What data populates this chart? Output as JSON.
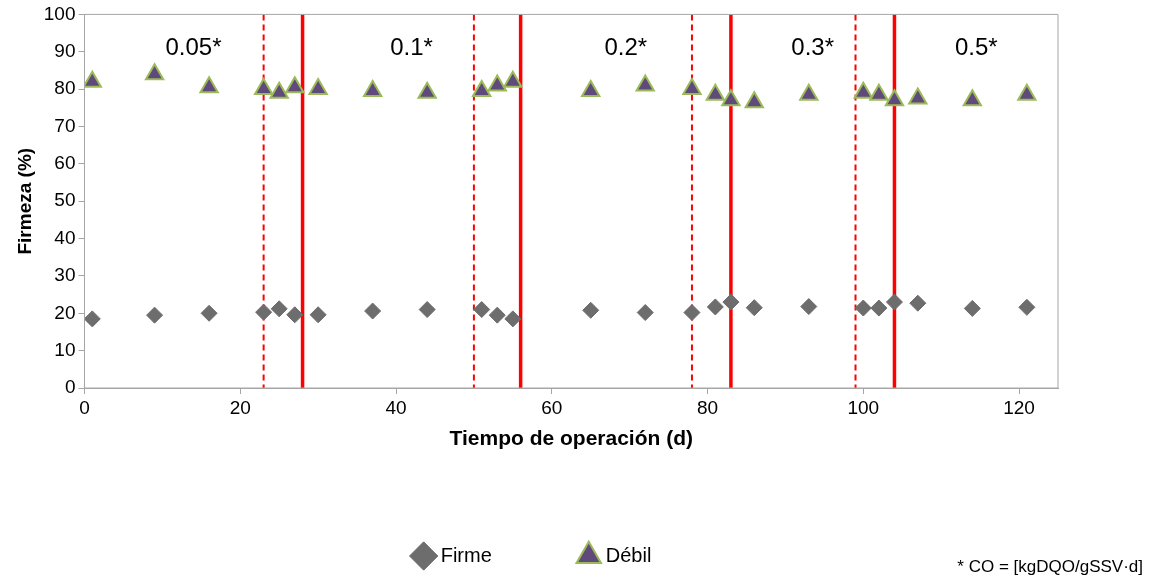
{
  "chart_data": {
    "type": "scatter",
    "xlabel": "Tiempo de operación (d)",
    "ylabel": "Firmeza (%)",
    "x": [
      1,
      9,
      16,
      23,
      25,
      27,
      30,
      37,
      44,
      51,
      53,
      55,
      65,
      72,
      78,
      81,
      83,
      86,
      93,
      100,
      102,
      104,
      107,
      114,
      121
    ],
    "series": [
      {
        "name": "Firme",
        "color": "#6d6d6d",
        "marker": "diamond",
        "values": [
          18.5,
          19.5,
          20,
          20.3,
          21.2,
          19.6,
          19.6,
          20.6,
          21,
          21,
          19.5,
          18.5,
          20.8,
          20.2,
          20.2,
          21.7,
          23,
          21.5,
          21.8,
          21.4,
          21.4,
          23,
          22.7,
          21.3,
          21.6
        ]
      },
      {
        "name": "Débil",
        "color": "#604a7b",
        "marker": "triangle",
        "values": [
          82,
          84,
          80.5,
          80,
          79,
          80.5,
          80,
          79.5,
          79,
          79.5,
          81,
          82,
          79.5,
          81,
          80,
          78.5,
          77,
          76.5,
          78.5,
          79,
          78.5,
          77,
          77.5,
          77,
          78.5
        ]
      }
    ],
    "xlim": [
      0,
      125
    ],
    "xticks": [
      0,
      20,
      40,
      60,
      80,
      100,
      120
    ],
    "ylim": [
      0,
      100
    ],
    "yticks": [
      0,
      10,
      20,
      30,
      40,
      50,
      60,
      70,
      80,
      90,
      100
    ],
    "grid": false,
    "legend": "bottom",
    "ref_lines": [
      {
        "axis": "x",
        "value": 23,
        "color": "#ff0000",
        "line_style": "dashed"
      },
      {
        "axis": "x",
        "value": 28,
        "color": "#ff0000",
        "line_style": "solid"
      },
      {
        "axis": "x",
        "value": 50,
        "color": "#ff0000",
        "line_style": "dashed"
      },
      {
        "axis": "x",
        "value": 56,
        "color": "#ff0000",
        "line_style": "solid"
      },
      {
        "axis": "x",
        "value": 78,
        "color": "#ff0000",
        "line_style": "dashed"
      },
      {
        "axis": "x",
        "value": 83,
        "color": "#ff0000",
        "line_style": "solid"
      },
      {
        "axis": "x",
        "value": 99,
        "color": "#ff0000",
        "line_style": "dashed"
      },
      {
        "axis": "x",
        "value": 104,
        "color": "#ff0000",
        "line_style": "solid"
      }
    ],
    "annotations": [
      "0.05*",
      "0.1*",
      "0.2*",
      "0.3*",
      "0.5*",
      "* CO = [kgDQO/gSSV·d]"
    ]
  }
}
